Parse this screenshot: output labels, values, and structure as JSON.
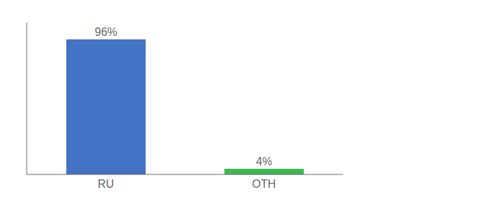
{
  "chart_data": {
    "type": "bar",
    "categories": [
      "RU",
      "OTH"
    ],
    "values": [
      96,
      4
    ],
    "value_labels": [
      "96%",
      "4%"
    ],
    "colors": [
      "#4472c4",
      "#3dba4e"
    ],
    "ylim": [
      0,
      108
    ],
    "data_labels": true,
    "tick_labels": "x",
    "grid": false
  }
}
